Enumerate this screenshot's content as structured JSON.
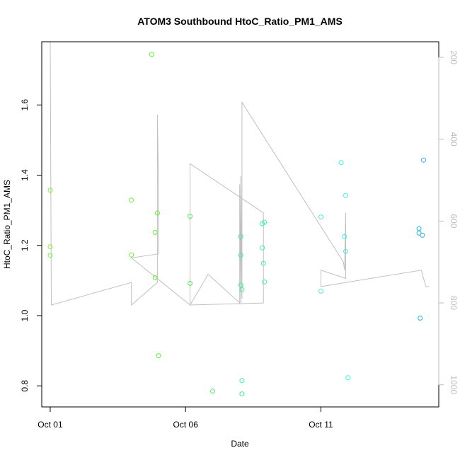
{
  "chart_data": {
    "type": "scatter",
    "title": "ATOM3 Southbound HtoC_Ratio_PM1_AMS",
    "xlabel": "Date",
    "ylabel": "HtoC_Ratio_PM1_AMS",
    "xlim": [
      "2016-09-30T16:30",
      "2016-10-15T08:30"
    ],
    "ylim": [
      0.74,
      1.78
    ],
    "x_ticks": [
      {
        "x": "2016-10-01T00:00",
        "label": "Oct 01"
      },
      {
        "x": "2016-10-06T00:00",
        "label": "Oct 06"
      },
      {
        "x": "2016-10-11T00:00",
        "label": "Oct 11"
      }
    ],
    "y_ticks": [
      0.8,
      1.0,
      1.2,
      1.4,
      1.6
    ],
    "y_tick_labels": [
      "0.8",
      "1.0",
      "1.2",
      "1.4",
      "1.6"
    ],
    "y2": {
      "ylim": [
        1054,
        162
      ],
      "ticks": [
        200,
        400,
        600,
        800,
        1000
      ],
      "tick_labels": [
        "200",
        "400",
        "600",
        "800",
        "1000"
      ],
      "color": "#bdbdbd"
    },
    "grid": false,
    "legend": "none",
    "point_colors": {
      "early": "#5ef030",
      "mid": "#3ff0a0",
      "late": "#40f0e8",
      "end": "#2ab8e8"
    },
    "points": [
      {
        "x": "2016-10-01T00:00",
        "y": 1.357,
        "c": "#7ef03a"
      },
      {
        "x": "2016-10-01T00:00",
        "y": 1.196,
        "c": "#7ef03a"
      },
      {
        "x": "2016-10-01T00:00",
        "y": 1.172,
        "c": "#7ef03a"
      },
      {
        "x": "2016-10-04T00:00",
        "y": 1.329,
        "c": "#6ef03a"
      },
      {
        "x": "2016-10-04T00:00",
        "y": 1.173,
        "c": "#6ef03a"
      },
      {
        "x": "2016-10-04T18:00",
        "y": 1.744,
        "c": "#60f040"
      },
      {
        "x": "2016-10-04T21:00",
        "y": 1.237,
        "c": "#60f040"
      },
      {
        "x": "2016-10-04T21:00",
        "y": 1.108,
        "c": "#60f040"
      },
      {
        "x": "2016-10-04T23:00",
        "y": 1.292,
        "c": "#60f040"
      },
      {
        "x": "2016-10-05T00:00",
        "y": 0.886,
        "c": "#60f040"
      },
      {
        "x": "2016-10-06T04:00",
        "y": 1.283,
        "c": "#4ef058"
      },
      {
        "x": "2016-10-06T04:00",
        "y": 1.092,
        "c": "#4ef058"
      },
      {
        "x": "2016-10-07T00:00",
        "y": 0.785,
        "c": "#4ef060"
      },
      {
        "x": "2016-10-08T01:00",
        "y": 1.225,
        "c": "#3ef090"
      },
      {
        "x": "2016-10-08T01:00",
        "y": 1.172,
        "c": "#3ef090"
      },
      {
        "x": "2016-10-08T01:00",
        "y": 1.087,
        "c": "#3ef090"
      },
      {
        "x": "2016-10-08T02:00",
        "y": 1.074,
        "c": "#3ef090"
      },
      {
        "x": "2016-10-08T02:00",
        "y": 0.815,
        "c": "#3ef090"
      },
      {
        "x": "2016-10-08T02:00",
        "y": 0.777,
        "c": "#3ef090"
      },
      {
        "x": "2016-10-08T20:00",
        "y": 1.262,
        "c": "#3ef0a8"
      },
      {
        "x": "2016-10-08T20:00",
        "y": 1.193,
        "c": "#3ef0a8"
      },
      {
        "x": "2016-10-08T21:00",
        "y": 1.149,
        "c": "#3ef0a8"
      },
      {
        "x": "2016-10-08T22:00",
        "y": 1.266,
        "c": "#3ef0a8"
      },
      {
        "x": "2016-10-08T22:00",
        "y": 1.096,
        "c": "#3ef0a8"
      },
      {
        "x": "2016-10-11T00:00",
        "y": 1.281,
        "c": "#40f0d8"
      },
      {
        "x": "2016-10-11T00:00",
        "y": 1.07,
        "c": "#40f0d8"
      },
      {
        "x": "2016-10-11T18:00",
        "y": 1.436,
        "c": "#40f0e8"
      },
      {
        "x": "2016-10-11T21:00",
        "y": 1.225,
        "c": "#40f0e8"
      },
      {
        "x": "2016-10-11T22:00",
        "y": 1.183,
        "c": "#40f0e8"
      },
      {
        "x": "2016-10-11T22:00",
        "y": 1.342,
        "c": "#40f0e8"
      },
      {
        "x": "2016-10-12T00:00",
        "y": 0.823,
        "c": "#40f0e8"
      },
      {
        "x": "2016-10-14T15:00",
        "y": 1.248,
        "c": "#2ab0e0"
      },
      {
        "x": "2016-10-14T15:00",
        "y": 1.235,
        "c": "#2ab0e0"
      },
      {
        "x": "2016-10-14T16:00",
        "y": 0.993,
        "c": "#2ab0e0"
      },
      {
        "x": "2016-10-14T18:00",
        "y": 1.229,
        "c": "#2ab0e0"
      },
      {
        "x": "2016-10-14T19:00",
        "y": 1.443,
        "c": "#2ab0e0"
      }
    ],
    "y2_line": {
      "color": "#c0c0c0",
      "points": [
        {
          "x": "2016-10-01T00:00",
          "y": 162
        },
        {
          "x": "2016-10-01T01:00",
          "y": 805
        },
        {
          "x": "2016-10-04T00:00",
          "y": 750
        },
        {
          "x": "2016-10-04T00:00",
          "y": 805
        },
        {
          "x": "2016-10-04T23:00",
          "y": 750
        },
        {
          "x": "2016-10-04T23:00",
          "y": 680
        },
        {
          "x": "2016-10-04T23:00",
          "y": 340
        },
        {
          "x": "2016-10-05T00:00",
          "y": 520
        },
        {
          "x": "2016-10-05T00:00",
          "y": 680
        },
        {
          "x": "2016-10-04T00:00",
          "y": 690
        },
        {
          "x": "2016-10-04T00:00",
          "y": 690
        },
        {
          "x": "2016-10-06T04:00",
          "y": 805
        },
        {
          "x": "2016-10-06T04:00",
          "y": 460
        },
        {
          "x": "2016-10-08T21:00",
          "y": 580
        },
        {
          "x": "2016-10-08T21:00",
          "y": 680
        },
        {
          "x": "2016-10-08T21:00",
          "y": 800
        },
        {
          "x": "2016-10-06T04:00",
          "y": 805
        },
        {
          "x": "2016-10-06T20:00",
          "y": 730
        },
        {
          "x": "2016-10-06T20:00",
          "y": 730
        },
        {
          "x": "2016-10-08T00:00",
          "y": 800
        },
        {
          "x": "2016-10-08T00:00",
          "y": 510
        },
        {
          "x": "2016-10-08T01:00",
          "y": 800
        },
        {
          "x": "2016-10-08T01:00",
          "y": 490
        },
        {
          "x": "2016-10-08T02:00",
          "y": 790
        },
        {
          "x": "2016-10-08T02:00",
          "y": 310
        },
        {
          "x": "2016-10-11T20:00",
          "y": 700
        },
        {
          "x": "2016-10-11T21:00",
          "y": 720
        },
        {
          "x": "2016-10-11T22:00",
          "y": 580
        },
        {
          "x": "2016-10-11T22:00",
          "y": 740
        },
        {
          "x": "2016-10-11T00:00",
          "y": 720
        },
        {
          "x": "2016-10-11T00:00",
          "y": 760
        },
        {
          "x": "2016-10-14T17:00",
          "y": 720
        },
        {
          "x": "2016-10-14T21:00",
          "y": 760
        },
        {
          "x": "2016-10-15T00:00",
          "y": 760
        }
      ]
    }
  }
}
